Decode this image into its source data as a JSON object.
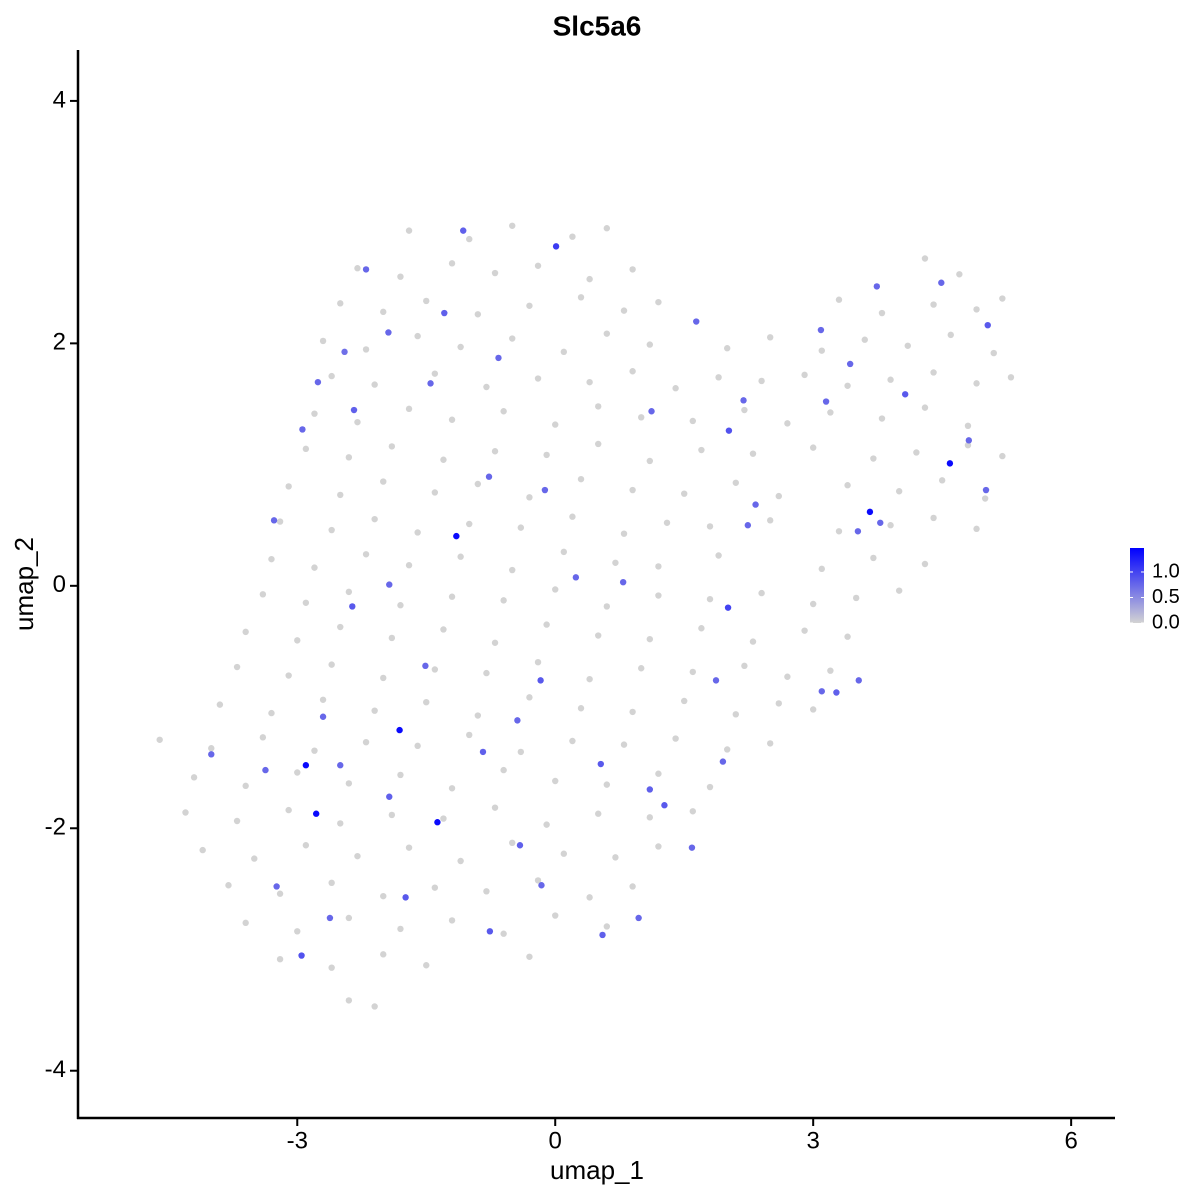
{
  "chart_data": {
    "type": "scatter",
    "title": "Slc5a6",
    "x_label": "umap_1",
    "y_label": "umap_2",
    "xlim": [
      -5.55,
      6.51
    ],
    "ylim": [
      -4.39,
      4.42
    ],
    "xticks": [
      -3,
      0,
      3,
      6
    ],
    "yticks": [
      -4,
      -2,
      0,
      2,
      4
    ],
    "colorbar": {
      "lim": [
        0,
        1.47
      ],
      "low_color": "#d3d3d3",
      "high_color": "#0000ff",
      "ticks": [
        {
          "value": 0,
          "label": "0.0"
        },
        {
          "value": 0.5,
          "label": "0.5"
        },
        {
          "value": 1,
          "label": "1.0"
        }
      ]
    },
    "x": [
      -1.7,
      -1.0,
      -0.5,
      0.2,
      0.6,
      -2.3,
      -1.8,
      -1.2,
      -0.7,
      -0.2,
      0.4,
      0.9,
      4.3,
      4.7,
      -2.5,
      -2.0,
      -1.5,
      -0.9,
      -0.3,
      0.3,
      0.8,
      1.2,
      3.3,
      3.8,
      4.4,
      4.9,
      5.2,
      -2.7,
      -2.2,
      -1.6,
      -1.1,
      -0.5,
      0.1,
      0.6,
      1.1,
      2.0,
      2.5,
      3.1,
      3.6,
      4.1,
      4.6,
      5.1,
      -2.6,
      -2.1,
      -1.4,
      -0.8,
      -0.2,
      0.4,
      0.9,
      1.4,
      1.9,
      2.4,
      2.9,
      3.4,
      3.9,
      4.4,
      4.9,
      5.3,
      -2.8,
      -2.3,
      -1.7,
      -1.2,
      -0.6,
      0.0,
      0.5,
      1.0,
      1.6,
      2.2,
      2.7,
      3.2,
      3.8,
      4.3,
      4.8,
      -2.9,
      -2.4,
      -1.9,
      -1.3,
      -0.7,
      -0.1,
      0.5,
      1.1,
      1.7,
      2.3,
      3.0,
      3.7,
      4.2,
      4.8,
      5.2,
      -3.1,
      -2.5,
      -2.0,
      -1.4,
      -0.9,
      -0.3,
      0.3,
      0.9,
      1.5,
      2.1,
      2.6,
      3.4,
      4.0,
      4.5,
      5.0,
      -3.2,
      -2.6,
      -2.1,
      -1.6,
      -1.0,
      -0.4,
      0.2,
      0.8,
      1.3,
      1.8,
      2.5,
      3.3,
      3.9,
      4.4,
      4.9,
      -3.3,
      -2.8,
      -2.2,
      -1.7,
      -1.1,
      -0.5,
      0.1,
      0.7,
      1.2,
      1.9,
      3.1,
      3.7,
      4.3,
      -3.4,
      -2.9,
      -2.4,
      -1.8,
      -1.2,
      -0.6,
      0.0,
      0.6,
      1.2,
      1.8,
      2.4,
      3.0,
      3.5,
      4.0,
      -3.6,
      -3.0,
      -2.5,
      -1.9,
      -1.3,
      -0.7,
      -0.1,
      0.5,
      1.1,
      1.7,
      2.3,
      2.9,
      3.4,
      -3.7,
      -3.1,
      -2.6,
      -2.0,
      -1.4,
      -0.8,
      -0.2,
      0.4,
      1.0,
      1.6,
      2.2,
      2.7,
      3.2,
      -3.9,
      -3.3,
      -2.7,
      -2.1,
      -1.5,
      -0.9,
      -0.3,
      0.3,
      0.9,
      1.5,
      2.1,
      2.6,
      3.0,
      -4.6,
      -4.0,
      -3.4,
      -2.8,
      -2.2,
      -1.6,
      -1.0,
      -0.4,
      0.2,
      0.8,
      1.4,
      2.0,
      2.5,
      -4.2,
      -3.6,
      -3.0,
      -2.4,
      -1.8,
      -1.2,
      -0.6,
      0.0,
      0.6,
      1.2,
      1.8,
      -4.3,
      -3.7,
      -3.1,
      -2.5,
      -1.9,
      -1.3,
      -0.7,
      -0.1,
      0.5,
      1.1,
      1.6,
      -4.1,
      -3.5,
      -2.9,
      -2.3,
      -1.7,
      -1.1,
      -0.5,
      0.1,
      0.7,
      1.2,
      -3.8,
      -3.2,
      -2.6,
      -2.0,
      -1.4,
      -0.8,
      -0.2,
      0.4,
      0.9,
      -3.6,
      -3.0,
      -2.4,
      -1.8,
      -1.2,
      -0.6,
      0.0,
      0.6,
      -3.2,
      -2.6,
      -2.0,
      -1.5,
      -0.3,
      -2.4,
      -2.1,
      -1.15,
      -1.81,
      -2.9,
      -2.78,
      -1.37,
      3.66,
      4.59,
      0.01,
      2.01,
      2.02,
      1.64,
      1.12,
      -2.34,
      -2.45,
      -1.94,
      -1.45,
      -1.29,
      -0.66,
      -0.77,
      -0.12,
      0.24,
      -1.51,
      -0.17,
      -0.44,
      -0.84,
      0.53,
      1.1,
      1.27,
      1.95,
      1.59,
      0.97,
      0.55,
      -0.16,
      -0.41,
      -0.76,
      -1.74,
      -1.93,
      -2.62,
      -2.95,
      -3.24,
      -3.37,
      -4.0,
      -2.7,
      -2.5,
      -2.36,
      -1.93,
      -3.27,
      -2.76,
      -2.94,
      -2.2,
      -1.07,
      0.79,
      1.87,
      3.1,
      3.27,
      3.53,
      3.15,
      3.43,
      3.74,
      4.49,
      5.03,
      4.81,
      4.07,
      3.78,
      5.01,
      2.19,
      2.24,
      3.09,
      3.52,
      2.33
    ],
    "y": [
      2.93,
      2.86,
      2.97,
      2.88,
      2.95,
      2.62,
      2.55,
      2.66,
      2.58,
      2.64,
      2.53,
      2.61,
      2.7,
      2.57,
      2.33,
      2.26,
      2.35,
      2.24,
      2.31,
      2.38,
      2.27,
      2.34,
      2.36,
      2.25,
      2.32,
      2.28,
      2.37,
      2.02,
      1.95,
      2.06,
      1.97,
      2.04,
      1.93,
      2.08,
      1.99,
      1.96,
      2.05,
      1.94,
      2.03,
      1.98,
      2.07,
      1.92,
      1.73,
      1.66,
      1.75,
      1.64,
      1.71,
      1.68,
      1.77,
      1.63,
      1.72,
      1.69,
      1.74,
      1.65,
      1.7,
      1.76,
      1.67,
      1.72,
      1.42,
      1.35,
      1.46,
      1.37,
      1.44,
      1.33,
      1.48,
      1.39,
      1.36,
      1.45,
      1.34,
      1.43,
      1.38,
      1.47,
      1.32,
      1.13,
      1.06,
      1.15,
      1.04,
      1.11,
      1.08,
      1.17,
      1.03,
      1.12,
      1.09,
      1.14,
      1.05,
      1.1,
      1.16,
      1.07,
      0.82,
      0.75,
      0.86,
      0.77,
      0.84,
      0.73,
      0.88,
      0.79,
      0.76,
      0.85,
      0.74,
      0.83,
      0.78,
      0.87,
      0.72,
      0.53,
      0.46,
      0.55,
      0.44,
      0.51,
      0.48,
      0.57,
      0.43,
      0.52,
      0.49,
      0.54,
      0.45,
      0.5,
      0.56,
      0.47,
      0.22,
      0.15,
      0.26,
      0.17,
      0.24,
      0.13,
      0.28,
      0.19,
      0.16,
      0.25,
      0.14,
      0.23,
      0.18,
      -0.07,
      -0.14,
      -0.05,
      -0.16,
      -0.09,
      -0.12,
      -0.03,
      -0.17,
      -0.08,
      -0.11,
      -0.06,
      -0.15,
      -0.1,
      -0.04,
      -0.38,
      -0.45,
      -0.34,
      -0.43,
      -0.36,
      -0.47,
      -0.32,
      -0.41,
      -0.44,
      -0.35,
      -0.46,
      -0.37,
      -0.42,
      -0.67,
      -0.74,
      -0.65,
      -0.76,
      -0.69,
      -0.72,
      -0.63,
      -0.77,
      -0.68,
      -0.71,
      -0.66,
      -0.75,
      -0.7,
      -0.98,
      -1.05,
      -0.94,
      -1.03,
      -0.96,
      -1.07,
      -0.92,
      -1.01,
      -1.04,
      -0.95,
      -1.06,
      -0.97,
      -1.02,
      -1.27,
      -1.34,
      -1.25,
      -1.36,
      -1.29,
      -1.32,
      -1.23,
      -1.37,
      -1.28,
      -1.31,
      -1.26,
      -1.35,
      -1.3,
      -1.58,
      -1.65,
      -1.54,
      -1.63,
      -1.56,
      -1.67,
      -1.52,
      -1.61,
      -1.64,
      -1.55,
      -1.66,
      -1.87,
      -1.94,
      -1.85,
      -1.96,
      -1.89,
      -1.92,
      -1.83,
      -1.97,
      -1.88,
      -1.91,
      -1.86,
      -2.18,
      -2.25,
      -2.14,
      -2.23,
      -2.16,
      -2.27,
      -2.12,
      -2.21,
      -2.24,
      -2.15,
      -2.47,
      -2.54,
      -2.45,
      -2.56,
      -2.49,
      -2.52,
      -2.43,
      -2.57,
      -2.48,
      -2.78,
      -2.85,
      -2.74,
      -2.83,
      -2.76,
      -2.87,
      -2.72,
      -2.81,
      -3.08,
      -3.15,
      -3.04,
      -3.13,
      -3.06,
      -3.42,
      -3.47,
      0.41,
      -1.19,
      -1.48,
      -1.88,
      -1.95,
      0.61,
      1.01,
      2.8,
      -0.18,
      1.28,
      2.18,
      1.44,
      1.45,
      1.93,
      2.09,
      1.67,
      2.25,
      1.88,
      0.9,
      0.79,
      0.07,
      -0.66,
      -0.78,
      -1.11,
      -1.37,
      -1.47,
      -1.68,
      -1.81,
      -1.45,
      -2.16,
      -2.74,
      -2.88,
      -2.47,
      -2.14,
      -2.85,
      -2.57,
      -1.74,
      -2.74,
      -3.05,
      -2.48,
      -1.52,
      -1.39,
      -1.08,
      -1.48,
      -0.17,
      0.01,
      0.54,
      1.68,
      1.29,
      2.61,
      2.93,
      0.03,
      -0.78,
      -0.87,
      -0.88,
      -0.78,
      1.52,
      1.83,
      2.47,
      2.5,
      2.15,
      1.2,
      1.58,
      0.52,
      0.79,
      1.53,
      0.5,
      2.11,
      0.45,
      0.67
    ],
    "expression": [
      0,
      0,
      0,
      0,
      0,
      0,
      0,
      0,
      0,
      0,
      0,
      0,
      0,
      0,
      0,
      0,
      0,
      0,
      0,
      0,
      0,
      0,
      0,
      0,
      0,
      0,
      0,
      0,
      0,
      0,
      0,
      0,
      0,
      0,
      0,
      0,
      0,
      0,
      0,
      0,
      0,
      0,
      0,
      0,
      0,
      0,
      0,
      0,
      0,
      0,
      0,
      0,
      0,
      0,
      0,
      0,
      0,
      0,
      0,
      0,
      0,
      0,
      0,
      0,
      0,
      0,
      0,
      0,
      0,
      0,
      0,
      0,
      0,
      0,
      0,
      0,
      0,
      0,
      0,
      0,
      0,
      0,
      0,
      0,
      0,
      0,
      0,
      0,
      0,
      0,
      0,
      0,
      0,
      0,
      0,
      0,
      0,
      0,
      0,
      0,
      0,
      0,
      0,
      0,
      0,
      0,
      0,
      0,
      0,
      0,
      0,
      0,
      0,
      0,
      0,
      0,
      0,
      0,
      0,
      0,
      0,
      0,
      0,
      0,
      0,
      0,
      0,
      0,
      0,
      0,
      0,
      0,
      0,
      0,
      0,
      0,
      0,
      0,
      0,
      0,
      0,
      0,
      0,
      0,
      0,
      0,
      0,
      0,
      0,
      0,
      0,
      0,
      0,
      0,
      0,
      0,
      0,
      0,
      0,
      0,
      0,
      0,
      0,
      0,
      0,
      0,
      0,
      0,
      0,
      0,
      0,
      0,
      0,
      0,
      0,
      0,
      0,
      0,
      0,
      0,
      0,
      0,
      0,
      0,
      0,
      0,
      0,
      0,
      0,
      0,
      0,
      0,
      0,
      0,
      0,
      0,
      0,
      0,
      0,
      0,
      0,
      0,
      0,
      0,
      0,
      0,
      0,
      0,
      0,
      0,
      0,
      0,
      0,
      0,
      0,
      0,
      0,
      0,
      0,
      0,
      0,
      0,
      0,
      0,
      0,
      0,
      0,
      0,
      0,
      0,
      0,
      0,
      0,
      0,
      0,
      0,
      0,
      0,
      0,
      0,
      0,
      0,
      0,
      0,
      0,
      0,
      0,
      0,
      0,
      0,
      0,
      0,
      0,
      1.4,
      1.4,
      1.4,
      1.4,
      1.4,
      1.4,
      1.4,
      1.05,
      1.0,
      0.9,
      0.75,
      0.75,
      0.8,
      0.7,
      0.75,
      0.75,
      0.8,
      0.75,
      0.75,
      0.75,
      0.75,
      0.75,
      0.85,
      0.75,
      0.8,
      0.85,
      0.8,
      0.85,
      0.75,
      0.75,
      0.75,
      0.8,
      0.75,
      0.8,
      0.85,
      0.85,
      0.8,
      0.75,
      0.9,
      0.75,
      0.75,
      0.75,
      0.75,
      0.75,
      0.85,
      0.75,
      0.75,
      0.75,
      0.75,
      0.75,
      0.8,
      0.75,
      0.75,
      0.75,
      0.8,
      0.75,
      0.75,
      0.75,
      0.75,
      0.75,
      0.85,
      0.75,
      0.85,
      0.75,
      0.75,
      0.75,
      0.75,
      0.75,
      0.75,
      0.75
    ]
  }
}
